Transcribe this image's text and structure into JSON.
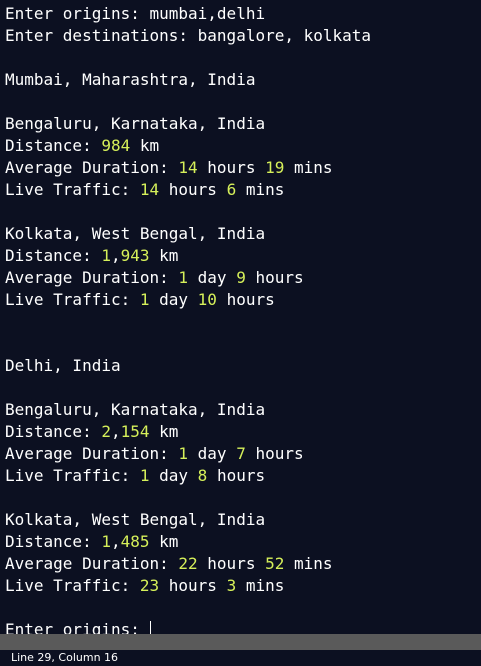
{
  "terminal": {
    "lines": [
      [
        {
          "t": "Enter origins: mumbai,delhi"
        }
      ],
      [
        {
          "t": "Enter destinations: bangalore, kolkata"
        }
      ],
      [],
      [
        {
          "t": "Mumbai, Maharashtra, India"
        }
      ],
      [],
      [
        {
          "t": "Bengaluru, Karnataka, India"
        }
      ],
      [
        {
          "t": "Distance: "
        },
        {
          "t": "984",
          "n": true
        },
        {
          "t": " km"
        }
      ],
      [
        {
          "t": "Average Duration: "
        },
        {
          "t": "14",
          "n": true
        },
        {
          "t": " hours "
        },
        {
          "t": "19",
          "n": true
        },
        {
          "t": " mins"
        }
      ],
      [
        {
          "t": "Live Traffic: "
        },
        {
          "t": "14",
          "n": true
        },
        {
          "t": " hours "
        },
        {
          "t": "6",
          "n": true
        },
        {
          "t": " mins"
        }
      ],
      [],
      [
        {
          "t": "Kolkata, West Bengal, India"
        }
      ],
      [
        {
          "t": "Distance: "
        },
        {
          "t": "1",
          "n": true
        },
        {
          "t": ","
        },
        {
          "t": "943",
          "n": true
        },
        {
          "t": " km"
        }
      ],
      [
        {
          "t": "Average Duration: "
        },
        {
          "t": "1",
          "n": true
        },
        {
          "t": " day "
        },
        {
          "t": "9",
          "n": true
        },
        {
          "t": " hours"
        }
      ],
      [
        {
          "t": "Live Traffic: "
        },
        {
          "t": "1",
          "n": true
        },
        {
          "t": " day "
        },
        {
          "t": "10",
          "n": true
        },
        {
          "t": " hours"
        }
      ],
      [],
      [],
      [
        {
          "t": "Delhi, India"
        }
      ],
      [],
      [
        {
          "t": "Bengaluru, Karnataka, India"
        }
      ],
      [
        {
          "t": "Distance: "
        },
        {
          "t": "2",
          "n": true
        },
        {
          "t": ","
        },
        {
          "t": "154",
          "n": true
        },
        {
          "t": " km"
        }
      ],
      [
        {
          "t": "Average Duration: "
        },
        {
          "t": "1",
          "n": true
        },
        {
          "t": " day "
        },
        {
          "t": "7",
          "n": true
        },
        {
          "t": " hours"
        }
      ],
      [
        {
          "t": "Live Traffic: "
        },
        {
          "t": "1",
          "n": true
        },
        {
          "t": " day "
        },
        {
          "t": "8",
          "n": true
        },
        {
          "t": " hours"
        }
      ],
      [],
      [
        {
          "t": "Kolkata, West Bengal, India"
        }
      ],
      [
        {
          "t": "Distance: "
        },
        {
          "t": "1",
          "n": true
        },
        {
          "t": ","
        },
        {
          "t": "485",
          "n": true
        },
        {
          "t": " km"
        }
      ],
      [
        {
          "t": "Average Duration: "
        },
        {
          "t": "22",
          "n": true
        },
        {
          "t": " hours "
        },
        {
          "t": "52",
          "n": true
        },
        {
          "t": " mins"
        }
      ],
      [
        {
          "t": "Live Traffic: "
        },
        {
          "t": "23",
          "n": true
        },
        {
          "t": " hours "
        },
        {
          "t": "3",
          "n": true
        },
        {
          "t": " mins"
        }
      ],
      [],
      [
        {
          "t": "Enter origins: "
        }
      ]
    ]
  },
  "status_bar": {
    "text": "Line 29, Column 16"
  },
  "colors": {
    "background": "#0c1021",
    "text": "#ffffff",
    "number": "#d6f05a",
    "status_bar": "#5a5a5a"
  }
}
